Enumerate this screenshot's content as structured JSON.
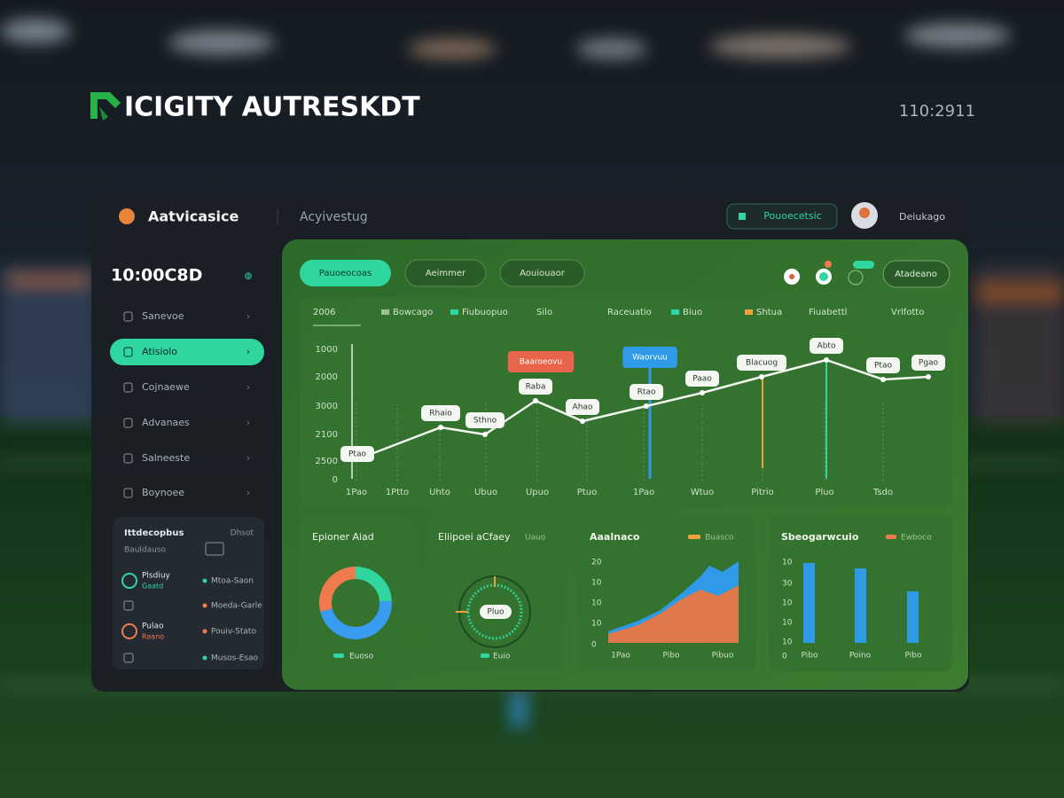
{
  "brand": {
    "name": "ICIGITY AUTRESKDT",
    "clock": "110:2911"
  },
  "topbar": {
    "app": "Aatvicasice",
    "section": "Acyivestug",
    "search": "Pouoecetsic",
    "user": "Deiukago"
  },
  "sidebar": {
    "time": "10:00C8D",
    "menu": [
      "Sanevoe",
      "Atisiolo",
      "Cojnaewe",
      "Advanaes",
      "Salneeste",
      "Boynoee"
    ],
    "card": {
      "title": "Ittdecopbus",
      "action": "Dhsot",
      "subtitle": "Bauldauso",
      "items": [
        {
          "name": "Plsdiuy",
          "sub": "Gaatd",
          "status": "Mtoa-Saon"
        },
        {
          "status": "Moeda-Garle"
        },
        {
          "name": "Pulao",
          "sub": "Raano",
          "status": "Pouiv-Stato"
        },
        {
          "status": "Musos-Esao"
        }
      ]
    }
  },
  "main": {
    "tabs": [
      "Pauoeocoas",
      "Aeimmer",
      "Aouiouaor"
    ],
    "button": "Atadeano",
    "line_chart": {
      "legend": [
        "2006",
        "Bowcago",
        "Fiubuopuo",
        "Silo",
        "Raceuatio",
        "Biuo",
        "Shtua",
        "Fiuabettl",
        "Vrlfotto"
      ],
      "y_labels": [
        "1000",
        "2000",
        "3000",
        "2100",
        "2500",
        "0"
      ],
      "x_labels": [
        "1Pao",
        "1Ptto",
        "Uhto",
        "Ubuo",
        "Upuo",
        "Ptuo",
        "1Pao",
        "Wtuo",
        "Pitrio",
        "Pluo",
        "Tsdo"
      ],
      "point_labels": [
        "Ptao",
        "Rhaio",
        "Sthno",
        "Raba",
        "Ahao",
        "Rtao",
        "Paao",
        "Blacuog",
        "Abto",
        "Ptao",
        "Pgao"
      ],
      "callouts": [
        "Baaroeovu",
        "Waorvuu"
      ]
    },
    "cards": [
      {
        "title": "Epioner Aiad",
        "legend": "Euoso"
      },
      {
        "title": "Eliipoei aCfaey",
        "tag": "Uauo",
        "center": "Pluo",
        "legend": "Euio"
      },
      {
        "title": "Aaalnaco",
        "legend": "Buasco",
        "y_labels": [
          "20",
          "10",
          "10",
          "10",
          "0"
        ],
        "x_labels": [
          "1Pao",
          "Pibo",
          "Pibuo"
        ]
      },
      {
        "title": "Sbeogarwcuio",
        "legend": "Ewboco",
        "y_labels": [
          "10",
          "30",
          "10",
          "10",
          "10",
          "0"
        ],
        "x_labels": [
          "Pibo",
          "Poino",
          "Pibo"
        ]
      }
    ]
  }
}
